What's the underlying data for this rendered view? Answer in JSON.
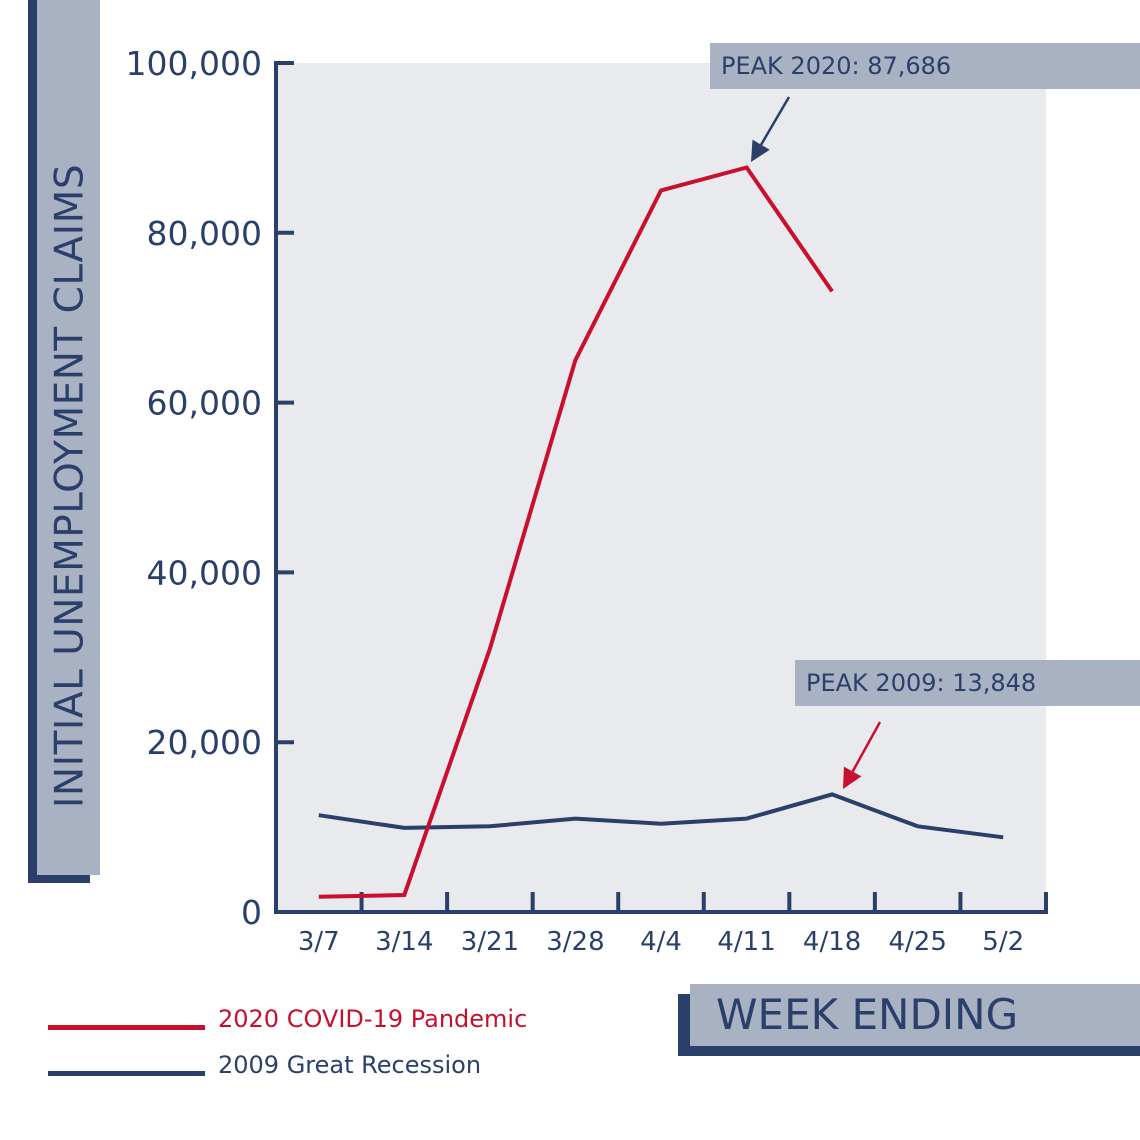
{
  "chart_data": {
    "type": "line",
    "title": "",
    "xlabel": "WEEK ENDING",
    "ylabel": "INITIAL UNEMPLOYMENT CLAIMS",
    "categories": [
      "3/7",
      "3/14",
      "3/21",
      "3/28",
      "4/4",
      "4/11",
      "4/18",
      "4/25",
      "5/2"
    ],
    "series": [
      {
        "name": "2020 COVID-19 Pandemic",
        "color": "#c8102e",
        "values": [
          1800,
          2000,
          31000,
          65000,
          85000,
          87686,
          73100,
          null,
          null
        ]
      },
      {
        "name": "2009 Great Recession",
        "color": "#2b3f6b",
        "values": [
          11400,
          9900,
          10100,
          11000,
          10400,
          11000,
          13848,
          10100,
          8800
        ]
      }
    ],
    "ylim": [
      0,
      100000
    ],
    "yticks": [
      0,
      20000,
      40000,
      60000,
      80000,
      100000
    ],
    "ytick_labels": [
      "0",
      "20,000",
      "40,000",
      "60,000",
      "80,000",
      "100,000"
    ],
    "grid": false,
    "legend_position": "bottom-left",
    "annotations": [
      {
        "text": "PEAK 2020: 87,686",
        "series": "2020 COVID-19 Pandemic",
        "x": "4/11",
        "y": 87686,
        "arrow_color": "#2b3f6b"
      },
      {
        "text": "PEAK 2009: 13,848",
        "series": "2009 Great Recession",
        "x": "4/18",
        "y": 13848,
        "arrow_color": "#c8102e"
      }
    ]
  },
  "labels": {
    "y_axis_title": "INITIAL UNEMPLOYMENT CLAIMS",
    "x_axis_title": "WEEK ENDING",
    "peak_2020": "PEAK 2020: 87,686",
    "peak_2009": "PEAK 2009: 13,848",
    "legend_2020": "2020 COVID-19 Pandemic",
    "legend_2009": "2009 Great Recession"
  },
  "colors": {
    "navy": "#2b3f6b",
    "red": "#c8102e",
    "panel_grey": "#a8b2c3",
    "plot_bg": "#e9eaee"
  }
}
